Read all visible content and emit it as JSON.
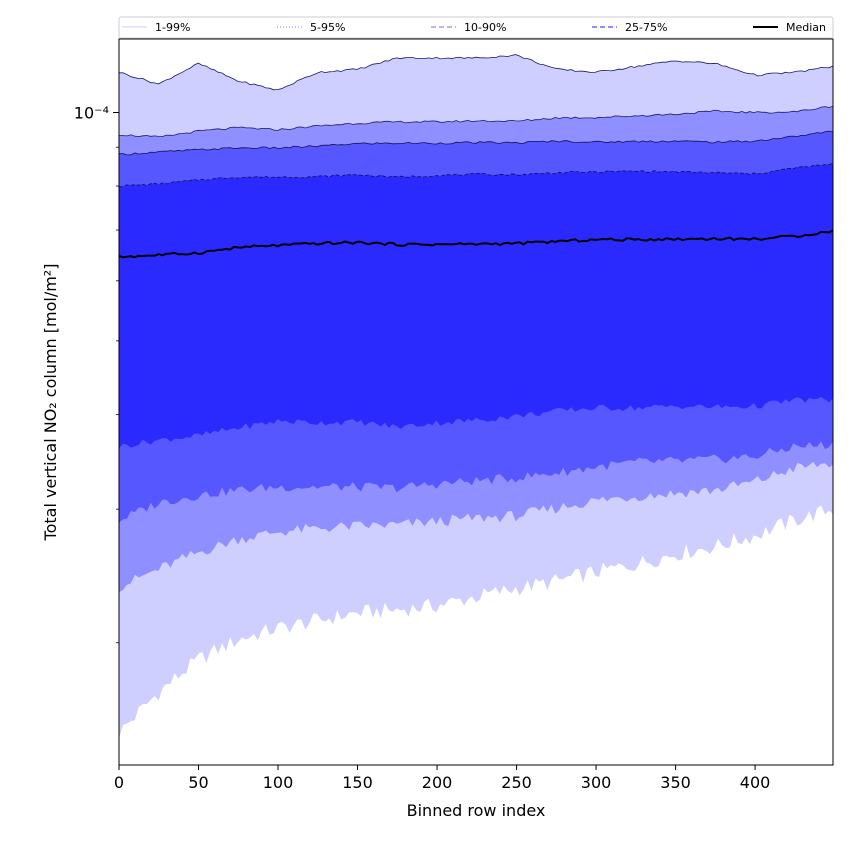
{
  "chart_data": {
    "type": "area",
    "title": "",
    "xlabel": "Binned row index",
    "ylabel": "Total vertical NO₂ column [mol/m²]",
    "yscale": "log",
    "xlim": [
      0,
      449
    ],
    "ylim": [
      1.38e-05,
      0.000125
    ],
    "grid": false,
    "legend_placement": "top, single row above plot",
    "x_ticks": [
      0,
      50,
      100,
      150,
      200,
      250,
      300,
      350,
      400
    ],
    "x_tick_labels": [
      "0",
      "50",
      "100",
      "150",
      "200",
      "250",
      "300",
      "350",
      "400"
    ],
    "y_ticks": [
      0.0001
    ],
    "y_tick_labels": [
      "10⁻⁴"
    ],
    "y_minor_ticks": [
      2e-05,
      3e-05,
      4e-05,
      5e-05,
      6e-05,
      7e-05,
      8e-05,
      9e-05
    ],
    "legend": [
      {
        "label": "1-99%",
        "style": "solid",
        "color": "#d8d8ff"
      },
      {
        "label": "5-95%",
        "style": "dotted",
        "color": "#9b9bff"
      },
      {
        "label": "10-90%",
        "style": "dashed",
        "color": "#8b8bff"
      },
      {
        "label": "25-75%",
        "style": "dashed",
        "color": "#4a4aff"
      },
      {
        "label": "Median",
        "style": "solid",
        "color": "#000000"
      }
    ],
    "band_colors": {
      "1-99%": "#cfcfff",
      "5-95%": "#8f8fff",
      "10-90%": "#5757ff",
      "25-75%": "#2a2aff"
    },
    "x": [
      0,
      25,
      50,
      75,
      100,
      125,
      150,
      175,
      200,
      225,
      250,
      275,
      300,
      325,
      350,
      375,
      400,
      425,
      449
    ],
    "series": [
      {
        "name": "1-99%",
        "lower": [
          1.52e-05,
          1.72e-05,
          1.9e-05,
          2.02e-05,
          2.09e-05,
          2.14e-05,
          2.19e-05,
          2.21e-05,
          2.24e-05,
          2.3e-05,
          2.36e-05,
          2.41e-05,
          2.48e-05,
          2.54e-05,
          2.62e-05,
          2.68e-05,
          2.77e-05,
          2.9e-05,
          3e-05
        ],
        "upper": [
          0.000113,
          0.000109,
          0.000116,
          0.00011,
          0.000107,
          0.000113,
          0.000114,
          0.000118,
          0.000118,
          0.000118,
          0.000119,
          0.000114,
          0.000113,
          0.000115,
          0.000117,
          0.000116,
          0.000112,
          0.000113,
          0.000115
        ]
      },
      {
        "name": "5-95%",
        "lower": [
          2.37e-05,
          2.5e-05,
          2.63e-05,
          2.74e-05,
          2.8e-05,
          2.83e-05,
          2.85e-05,
          2.86e-05,
          2.89e-05,
          2.92e-05,
          2.94e-05,
          3.01e-05,
          3.08e-05,
          3.12e-05,
          3.15e-05,
          3.18e-05,
          3.26e-05,
          3.4e-05,
          3.45e-05
        ]
      },
      {
        "name": "10-90%",
        "lower": [
          2.9e-05,
          3.06e-05,
          3.13e-05,
          3.18e-05,
          3.21e-05,
          3.21e-05,
          3.21e-05,
          3.2e-05,
          3.24e-05,
          3.27e-05,
          3.3e-05,
          3.35e-05,
          3.41e-05,
          3.46e-05,
          3.47e-05,
          3.49e-05,
          3.52e-05,
          3.63e-05,
          3.65e-05
        ]
      },
      {
        "name": "25-75%",
        "lower": [
          3.63e-05,
          3.7e-05,
          3.75e-05,
          3.84e-05,
          3.92e-05,
          3.9e-05,
          3.91e-05,
          3.85e-05,
          3.9e-05,
          3.93e-05,
          3.98e-05,
          4.04e-05,
          4.08e-05,
          4.08e-05,
          4.1e-05,
          4.09e-05,
          4.1e-05,
          4.18e-05,
          4.18e-05
        ],
        "upper": [
          8e-05,
          8.05e-05,
          8.15e-05,
          8.22e-05,
          8.22e-05,
          8.23e-05,
          8.28e-05,
          8.22e-05,
          8.26e-05,
          8.29e-05,
          8.28e-05,
          8.33e-05,
          8.35e-05,
          8.37e-05,
          8.35e-05,
          8.33e-05,
          8.3e-05,
          8.45e-05,
          8.55e-05
        ]
      },
      {
        "name": "10-90% upper",
        "upper": [
          8.8e-05,
          8.87e-05,
          8.93e-05,
          8.98e-05,
          8.98e-05,
          9.03e-05,
          9.1e-05,
          9.11e-05,
          9.11e-05,
          9.13e-05,
          9.12e-05,
          9.17e-05,
          9.14e-05,
          9.16e-05,
          9.17e-05,
          9.14e-05,
          9.17e-05,
          9.3e-05,
          9.45e-05
        ]
      },
      {
        "name": "5-95% upper",
        "upper": [
          9.35e-05,
          9.28e-05,
          9.45e-05,
          9.55e-05,
          9.49e-05,
          9.6e-05,
          9.68e-05,
          9.72e-05,
          9.72e-05,
          9.75e-05,
          9.74e-05,
          9.84e-05,
          9.85e-05,
          9.9e-05,
          9.95e-05,
          0.0001004,
          0.0001,
          0.0001002,
          0.000102
        ]
      },
      {
        "name": "Median",
        "values": [
          6.45e-05,
          6.49e-05,
          6.53e-05,
          6.64e-05,
          6.68e-05,
          6.72e-05,
          6.74e-05,
          6.7e-05,
          6.7e-05,
          6.71e-05,
          6.72e-05,
          6.76e-05,
          6.8e-05,
          6.8e-05,
          6.81e-05,
          6.82e-05,
          6.81e-05,
          6.87e-05,
          6.98e-05
        ]
      }
    ]
  }
}
